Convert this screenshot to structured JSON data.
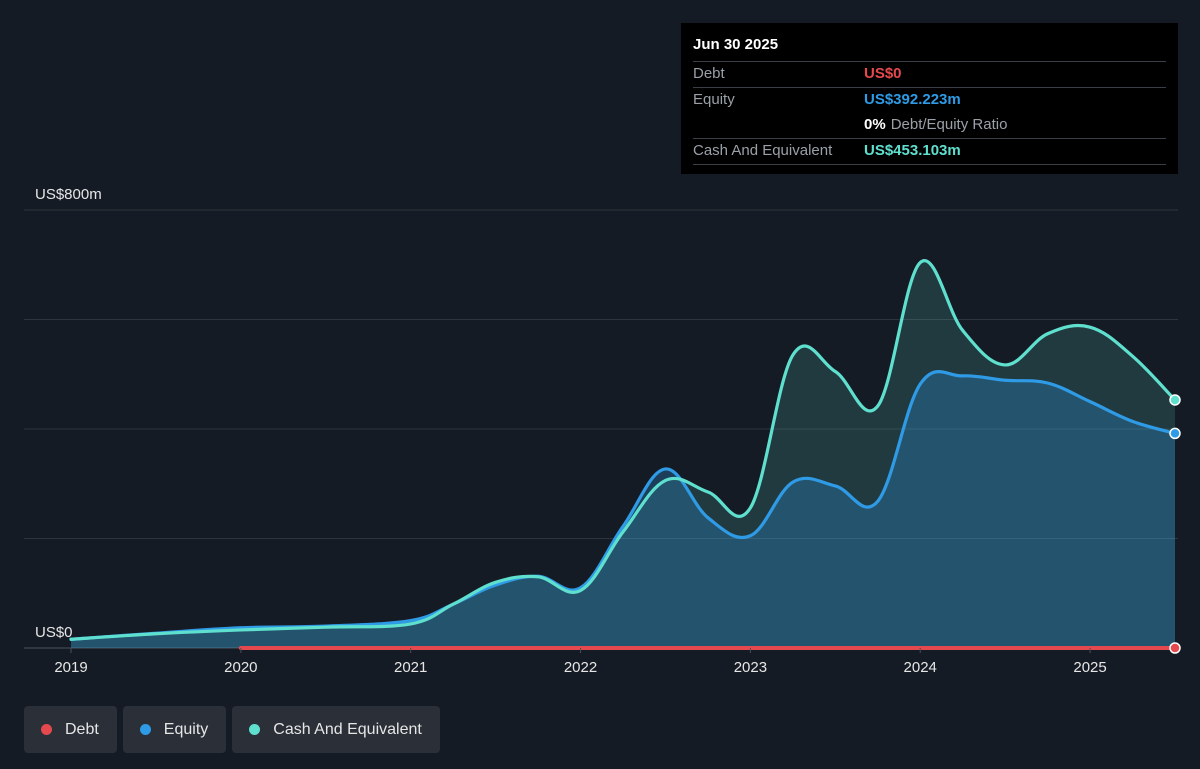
{
  "tooltip": {
    "date": "Jun 30 2025",
    "rows": [
      {
        "label": "Debt",
        "value": "US$0",
        "color": "#e5484d"
      },
      {
        "label": "Equity",
        "value": "US$392.223m",
        "color": "#2f9be6"
      },
      {
        "ratio_value": "0%",
        "ratio_label": "Debt/Equity Ratio"
      },
      {
        "label": "Cash And Equivalent",
        "value": "US$453.103m",
        "color": "#5fe0cf"
      }
    ]
  },
  "legend": [
    {
      "label": "Debt",
      "color": "#e5484d"
    },
    {
      "label": "Equity",
      "color": "#2f9be6"
    },
    {
      "label": "Cash And Equivalent",
      "color": "#5fe0cf"
    }
  ],
  "chart_data": {
    "type": "area",
    "ylim": [
      0,
      800
    ],
    "y_tick_labels": [
      {
        "value": 800,
        "label": "US$800m"
      },
      {
        "value": 0,
        "label": "US$0"
      }
    ],
    "y_gridlines": [
      0,
      200,
      400,
      600,
      800
    ],
    "xlim": [
      2019,
      2025.5
    ],
    "x_ticks": [
      "2019",
      "2020",
      "2021",
      "2022",
      "2023",
      "2024",
      "2025"
    ],
    "grid": true,
    "legend_position": "bottom-left",
    "series": [
      {
        "name": "Debt",
        "color": "#e5484d",
        "type": "line",
        "points": [
          [
            2020.0,
            0
          ],
          [
            2025.5,
            0
          ]
        ]
      },
      {
        "name": "Equity",
        "color": "#2f9be6",
        "type": "area",
        "points": [
          [
            2019.0,
            16
          ],
          [
            2019.5,
            27
          ],
          [
            2020.0,
            37
          ],
          [
            2020.5,
            40
          ],
          [
            2021.0,
            50
          ],
          [
            2021.25,
            80
          ],
          [
            2021.5,
            115
          ],
          [
            2021.75,
            131
          ],
          [
            2022.0,
            110
          ],
          [
            2022.25,
            222
          ],
          [
            2022.5,
            327
          ],
          [
            2022.75,
            238
          ],
          [
            2023.0,
            205
          ],
          [
            2023.25,
            303
          ],
          [
            2023.5,
            296
          ],
          [
            2023.75,
            268
          ],
          [
            2024.0,
            482
          ],
          [
            2024.25,
            497
          ],
          [
            2024.5,
            489
          ],
          [
            2024.75,
            484
          ],
          [
            2025.0,
            450
          ],
          [
            2025.25,
            414
          ],
          [
            2025.5,
            392
          ]
        ]
      },
      {
        "name": "Cash And Equivalent",
        "color": "#5fe0cf",
        "type": "area",
        "points": [
          [
            2019.0,
            16
          ],
          [
            2019.5,
            26
          ],
          [
            2020.0,
            33
          ],
          [
            2020.5,
            38
          ],
          [
            2021.0,
            44
          ],
          [
            2021.25,
            80
          ],
          [
            2021.5,
            120
          ],
          [
            2021.75,
            130
          ],
          [
            2022.0,
            105
          ],
          [
            2022.25,
            212
          ],
          [
            2022.5,
            306
          ],
          [
            2022.75,
            285
          ],
          [
            2023.0,
            256
          ],
          [
            2023.25,
            535
          ],
          [
            2023.5,
            505
          ],
          [
            2023.75,
            442
          ],
          [
            2024.0,
            704
          ],
          [
            2024.25,
            580
          ],
          [
            2024.5,
            517
          ],
          [
            2024.75,
            574
          ],
          [
            2025.0,
            586
          ],
          [
            2025.25,
            533
          ],
          [
            2025.5,
            453
          ]
        ]
      }
    ]
  }
}
